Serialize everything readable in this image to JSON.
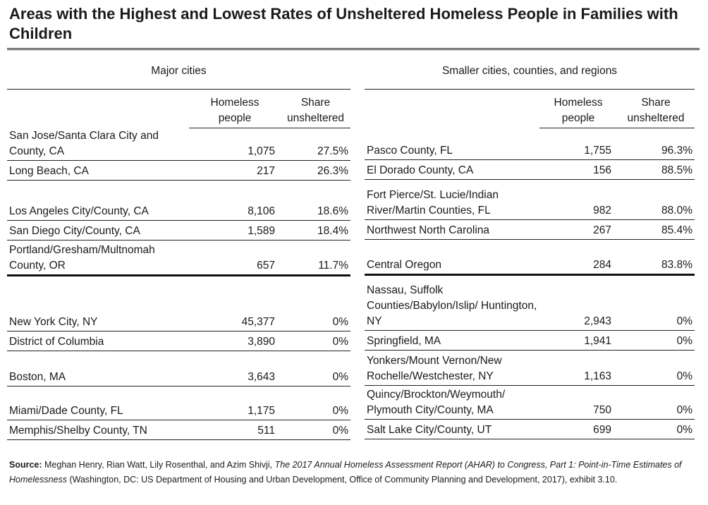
{
  "title": "Areas with the Highest and Lowest Rates of Unsheltered Homeless People in Families with Children",
  "columns": {
    "homeless": [
      "Homeless",
      "people"
    ],
    "share": [
      "Share",
      "unsheltered"
    ]
  },
  "major_cities": {
    "heading": "Major cities",
    "rows": [
      {
        "area": "San Jose/Santa Clara City and County, CA",
        "homeless": "1,075",
        "share": "27.5%"
      },
      {
        "area": "Long Beach, CA",
        "homeless": "217",
        "share": "26.3%"
      },
      {
        "area": "Los Angeles City/County, CA",
        "homeless": "8,106",
        "share": "18.6%"
      },
      {
        "area": "San Diego City/County, CA",
        "homeless": "1,589",
        "share": "18.4%"
      },
      {
        "area": "Portland/Gresham/Multnomah County, OR",
        "homeless": "657",
        "share": "11.7%"
      },
      {
        "area": "New York City, NY",
        "homeless": "45,377",
        "share": "0%"
      },
      {
        "area": "District of Columbia",
        "homeless": "3,890",
        "share": "0%"
      },
      {
        "area": "Boston, MA",
        "homeless": "3,643",
        "share": "0%"
      },
      {
        "area": "Miami/Dade County, FL",
        "homeless": "1,175",
        "share": "0%"
      },
      {
        "area": "Memphis/Shelby County, TN",
        "homeless": "511",
        "share": "0%"
      }
    ]
  },
  "smaller_areas": {
    "heading": "Smaller cities, counties, and regions",
    "rows": [
      {
        "area": "Pasco County, FL",
        "homeless": "1,755",
        "share": "96.3%"
      },
      {
        "area": "El Dorado County, CA",
        "homeless": "156",
        "share": "88.5%"
      },
      {
        "area": "Fort Pierce/St. Lucie/Indian River/Martin Counties, FL",
        "homeless": "982",
        "share": "88.0%"
      },
      {
        "area": "Northwest North Carolina",
        "homeless": "267",
        "share": "85.4%"
      },
      {
        "area": "Central Oregon",
        "homeless": "284",
        "share": "83.8%"
      },
      {
        "area": "Nassau, Suffolk Counties/Babylon/Islip/ Huntington, NY",
        "homeless": "2,943",
        "share": "0%"
      },
      {
        "area": "Springfield, MA",
        "homeless": "1,941",
        "share": "0%"
      },
      {
        "area": "Yonkers/Mount Vernon/New Rochelle/Westchester, NY",
        "homeless": "1,163",
        "share": "0%"
      },
      {
        "area": "Quincy/Brockton/Weymouth/ Plymouth City/County, MA",
        "homeless": "750",
        "share": "0%"
      },
      {
        "area": "Salt Lake City/County, UT",
        "homeless": "699",
        "share": "0%"
      }
    ]
  },
  "source": {
    "label": "Source:",
    "authors": " Meghan Henry, Rian Watt, Lily Rosenthal, and Azim Shivji, ",
    "title_italic": "The 2017 Annual Homeless Assessment Report (AHAR) to Congress, Part 1: Point-in-Time Estimates of Homelessness",
    "rest": "  (Washington, DC: US Department of Housing and Urban Development, Office of Community Planning and Development, 2017), exhibit 3.10."
  }
}
